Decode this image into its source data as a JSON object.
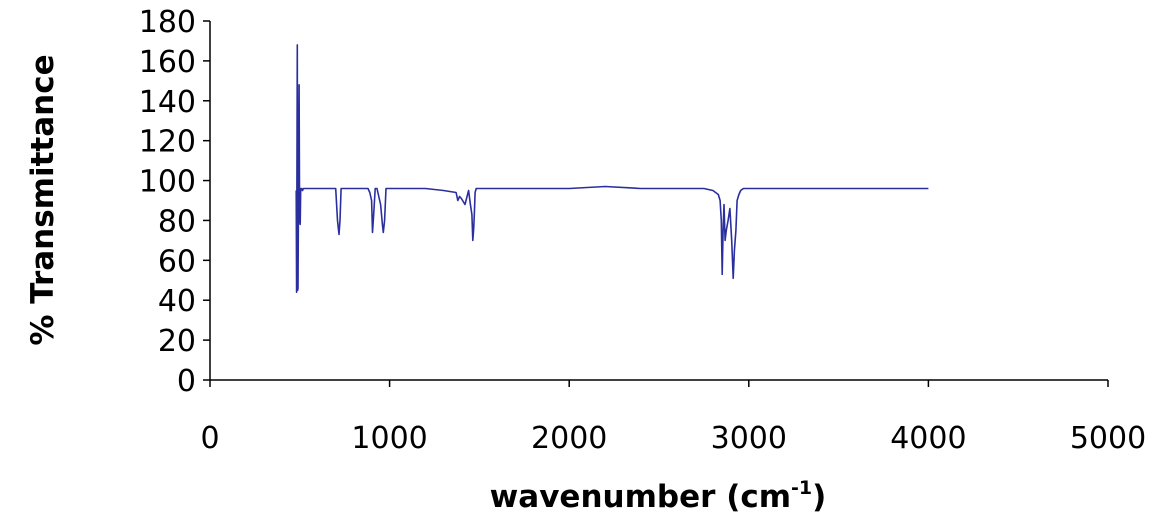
{
  "chart_data": {
    "type": "line",
    "title": "",
    "xlabel": "wavenumber (cm",
    "xlabel_sup": "-1",
    "xlabel_close": ")",
    "ylabel": "% Transmittance",
    "xlim": [
      0,
      5000
    ],
    "ylim": [
      0,
      180
    ],
    "x_ticks": [
      "0",
      "1000",
      "2000",
      "3000",
      "4000",
      "5000"
    ],
    "y_ticks": [
      "180",
      "160",
      "140",
      "120",
      "100",
      "80",
      "60",
      "40",
      "20",
      "0"
    ],
    "grid": false,
    "legend": "none",
    "colors": {
      "line": "#2b2f9e",
      "axis": "#000000"
    },
    "series": [
      {
        "x": [
          480,
          482,
          486,
          488,
          490,
          493,
          496,
          499,
          502,
          505,
          510,
          515,
          520,
          525,
          540,
          600,
          650,
          700,
          710,
          718,
          724,
          730,
          740,
          760,
          800,
          850,
          880,
          890,
          900,
          905,
          912,
          920,
          930,
          950,
          960,
          965,
          972,
          980,
          1000,
          1100,
          1200,
          1300,
          1370,
          1380,
          1390,
          1400,
          1420,
          1440,
          1450,
          1458,
          1463,
          1468,
          1472,
          1476,
          1482,
          1490,
          1500,
          1600,
          1800,
          2000,
          2200,
          2400,
          2600,
          2750,
          2800,
          2830,
          2840,
          2847,
          2852,
          2857,
          2862,
          2868,
          2875,
          2885,
          2895,
          2905,
          2913,
          2920,
          2928,
          2935,
          2945,
          2955,
          2970,
          3000,
          3100,
          3500,
          4000
        ],
        "y": [
          95,
          44,
          168,
          45,
          46,
          93,
          148,
          80,
          78,
          96,
          96,
          95,
          96,
          96,
          96,
          96,
          96,
          96,
          80,
          73,
          80,
          96,
          96,
          96,
          96,
          96,
          96,
          94,
          90,
          74,
          84,
          96,
          96,
          88,
          78,
          74,
          80,
          96,
          96,
          96,
          96,
          95,
          94,
          90,
          92,
          91,
          88,
          95,
          88,
          83,
          70,
          76,
          84,
          94,
          96,
          96,
          96,
          96,
          96,
          96,
          97,
          96,
          96,
          96,
          95,
          93,
          90,
          80,
          53,
          75,
          88,
          70,
          75,
          80,
          86,
          70,
          51,
          65,
          75,
          90,
          93,
          95,
          96,
          96,
          96,
          96,
          96
        ]
      }
    ]
  }
}
